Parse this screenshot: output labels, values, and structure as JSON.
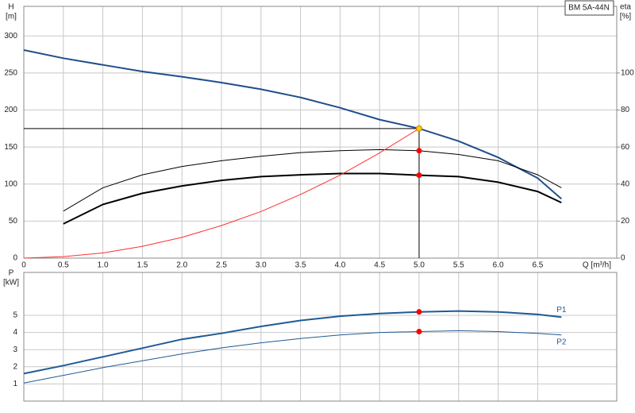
{
  "chart_data": [
    {
      "type": "line",
      "title": "BM 5A-44N",
      "xlabel": "Q [m³/h]",
      "ylabel": [
        "H",
        "[m]"
      ],
      "y2label": [
        "eta",
        "[%]"
      ],
      "xlim": [
        0,
        7.5
      ],
      "xticks": [
        0,
        0.5,
        {
          "value": 1,
          "label": "1.0"
        },
        1.5,
        {
          "value": 2,
          "label": "2.0"
        },
        2.5,
        {
          "value": 3,
          "label": "3.0"
        },
        3.5,
        {
          "value": 4,
          "label": "4.0"
        },
        4.5,
        {
          "value": 5,
          "label": "5.0"
        },
        5.5,
        {
          "value": 6,
          "label": "6.0"
        },
        6.5
      ],
      "ylim": [
        0,
        340
      ],
      "yticks": [
        0,
        50,
        100,
        150,
        200,
        250,
        300
      ],
      "y2lim": [
        0,
        136
      ],
      "y2ticks": [
        0,
        20,
        40,
        60,
        80,
        100
      ],
      "grid": true,
      "series": [
        {
          "color": "#1f4e8c",
          "line_width": 2,
          "x": [
            0,
            0.5,
            1,
            1.5,
            2,
            2.5,
            3,
            3.5,
            4,
            4.5,
            5,
            5.5,
            6,
            6.5,
            6.8
          ],
          "values": [
            281,
            270,
            261,
            252,
            245,
            237,
            228,
            217,
            203,
            187,
            175,
            158,
            136,
            108,
            80
          ]
        },
        {
          "color": "#000000",
          "line_width": 1,
          "axis": "y2",
          "x": [
            0.5,
            1,
            1.5,
            2,
            2.5,
            3,
            3.5,
            4,
            4.5,
            5,
            5.5,
            6,
            6.5,
            6.8
          ],
          "values": [
            25.4,
            38,
            45,
            49.5,
            52.6,
            55,
            57,
            58,
            58.6,
            58,
            56,
            52.6,
            45,
            38
          ]
        },
        {
          "color": "#000000",
          "line_width": 2,
          "axis": "y2",
          "x": [
            0.5,
            1,
            1.5,
            2,
            2.5,
            3,
            3.5,
            4,
            4.5,
            5,
            5.5,
            6,
            6.5,
            6.8
          ],
          "values": [
            18.5,
            29,
            35,
            39,
            42,
            44,
            45,
            45.7,
            45.7,
            44.8,
            44,
            41,
            36,
            30
          ]
        },
        {
          "color": "#ff3030",
          "line_width": 1,
          "x": [
            0,
            0.5,
            1,
            1.5,
            2,
            2.5,
            3,
            3.5,
            4,
            4.5,
            5
          ],
          "values": [
            0,
            2,
            7,
            16,
            28,
            44,
            63,
            86,
            112,
            142,
            175
          ]
        }
      ],
      "markers": [
        {
          "x": 5,
          "y": 175,
          "color": "#ffcc00",
          "crosshair": true
        },
        {
          "x": 5,
          "y": 58,
          "axis": "y2",
          "color": "#ff0000"
        },
        {
          "x": 5,
          "y": 44.8,
          "axis": "y2",
          "color": "#ff0000"
        }
      ]
    },
    {
      "type": "line",
      "ylabel": [
        "P",
        "[kW]"
      ],
      "xlim": [
        0,
        7.5
      ],
      "xticks": [
        0,
        0.5,
        1,
        1.5,
        2,
        2.5,
        3,
        3.5,
        4,
        4.5,
        5,
        5.5,
        6,
        6.5
      ],
      "show_xtick_labels": false,
      "ylim": [
        0,
        7.5
      ],
      "yticks": [
        1,
        2,
        3,
        4,
        5
      ],
      "grid": true,
      "series": [
        {
          "name": "P1",
          "color": "#1f5a96",
          "line_width": 2,
          "x": [
            0,
            0.5,
            1,
            1.5,
            2,
            2.5,
            3,
            3.5,
            4,
            4.5,
            5,
            5.5,
            6,
            6.5,
            6.8
          ],
          "values": [
            1.6,
            2.07,
            2.58,
            3.09,
            3.6,
            3.95,
            4.35,
            4.7,
            4.95,
            5.1,
            5.2,
            5.25,
            5.2,
            5.05,
            4.9
          ]
        },
        {
          "name": "P2",
          "color": "#1f5a96",
          "line_width": 1,
          "x": [
            0,
            0.5,
            1,
            1.5,
            2,
            2.5,
            3,
            3.5,
            4,
            4.5,
            5,
            5.5,
            6,
            6.5,
            6.8
          ],
          "values": [
            1.05,
            1.5,
            1.95,
            2.35,
            2.75,
            3.1,
            3.4,
            3.65,
            3.85,
            4.0,
            4.05,
            4.1,
            4.05,
            3.95,
            3.85
          ]
        }
      ],
      "markers": [
        {
          "x": 5,
          "y": 5.2,
          "color": "#ff0000"
        },
        {
          "x": 5,
          "y": 4.05,
          "color": "#ff0000"
        }
      ]
    }
  ]
}
